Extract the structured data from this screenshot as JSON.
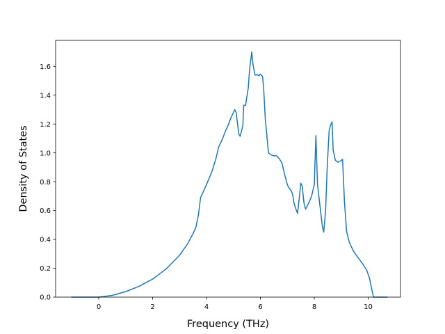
{
  "chart_data": {
    "type": "line",
    "xlabel": "Frequency (THz)",
    "ylabel": "Density of States",
    "xlim": [
      -1.6,
      11.2
    ],
    "ylim": [
      0.0,
      1.78
    ],
    "xticks": [
      0,
      2,
      4,
      6,
      8,
      10
    ],
    "yticks": [
      0.0,
      0.2,
      0.4,
      0.6,
      0.8,
      1.0,
      1.2,
      1.4,
      1.6
    ],
    "ytick_labels": [
      "0.0",
      "0.2",
      "0.4",
      "0.6",
      "0.8",
      "1.0",
      "1.2",
      "1.4",
      "1.6"
    ],
    "grid": false,
    "series": [
      {
        "color": "#1f77b4",
        "points": [
          [
            -1.0,
            0.0
          ],
          [
            0.0,
            0.0
          ],
          [
            0.5,
            0.012
          ],
          [
            1.0,
            0.038
          ],
          [
            1.5,
            0.075
          ],
          [
            2.0,
            0.125
          ],
          [
            2.5,
            0.195
          ],
          [
            3.0,
            0.29
          ],
          [
            3.3,
            0.37
          ],
          [
            3.5,
            0.44
          ],
          [
            3.6,
            0.48
          ],
          [
            3.7,
            0.57
          ],
          [
            3.78,
            0.69
          ],
          [
            4.0,
            0.78
          ],
          [
            4.2,
            0.87
          ],
          [
            4.35,
            0.96
          ],
          [
            4.45,
            1.04
          ],
          [
            4.6,
            1.1
          ],
          [
            4.7,
            1.15
          ],
          [
            4.8,
            1.19
          ],
          [
            4.9,
            1.24
          ],
          [
            5.05,
            1.3
          ],
          [
            5.1,
            1.28
          ],
          [
            5.2,
            1.13
          ],
          [
            5.25,
            1.115
          ],
          [
            5.35,
            1.19
          ],
          [
            5.38,
            1.33
          ],
          [
            5.45,
            1.33
          ],
          [
            5.55,
            1.45
          ],
          [
            5.6,
            1.58
          ],
          [
            5.68,
            1.7
          ],
          [
            5.72,
            1.62
          ],
          [
            5.8,
            1.54
          ],
          [
            5.9,
            1.54
          ],
          [
            5.95,
            1.535
          ],
          [
            6.0,
            1.545
          ],
          [
            6.08,
            1.53
          ],
          [
            6.12,
            1.45
          ],
          [
            6.18,
            1.24
          ],
          [
            6.25,
            1.1
          ],
          [
            6.3,
            1.0
          ],
          [
            6.4,
            0.985
          ],
          [
            6.5,
            0.98
          ],
          [
            6.6,
            0.98
          ],
          [
            6.7,
            0.96
          ],
          [
            6.8,
            0.93
          ],
          [
            6.9,
            0.85
          ],
          [
            7.0,
            0.78
          ],
          [
            7.05,
            0.76
          ],
          [
            7.15,
            0.735
          ],
          [
            7.2,
            0.71
          ],
          [
            7.25,
            0.65
          ],
          [
            7.3,
            0.62
          ],
          [
            7.38,
            0.58
          ],
          [
            7.45,
            0.7
          ],
          [
            7.5,
            0.79
          ],
          [
            7.55,
            0.77
          ],
          [
            7.62,
            0.65
          ],
          [
            7.68,
            0.61
          ],
          [
            7.8,
            0.655
          ],
          [
            7.9,
            0.7
          ],
          [
            8.0,
            0.78
          ],
          [
            8.06,
            1.12
          ],
          [
            8.12,
            0.78
          ],
          [
            8.2,
            0.65
          ],
          [
            8.3,
            0.49
          ],
          [
            8.35,
            0.45
          ],
          [
            8.42,
            0.6
          ],
          [
            8.48,
            0.9
          ],
          [
            8.55,
            1.15
          ],
          [
            8.6,
            1.19
          ],
          [
            8.66,
            1.215
          ],
          [
            8.7,
            1.02
          ],
          [
            8.78,
            0.95
          ],
          [
            8.88,
            0.935
          ],
          [
            8.98,
            0.945
          ],
          [
            9.05,
            0.955
          ],
          [
            9.12,
            0.66
          ],
          [
            9.2,
            0.455
          ],
          [
            9.3,
            0.38
          ],
          [
            9.45,
            0.32
          ],
          [
            9.6,
            0.28
          ],
          [
            9.8,
            0.23
          ],
          [
            9.95,
            0.185
          ],
          [
            10.05,
            0.13
          ],
          [
            10.15,
            0.04
          ],
          [
            10.2,
            0.0
          ],
          [
            10.6,
            0.0
          ],
          [
            10.7,
            0.0
          ]
        ]
      }
    ]
  }
}
